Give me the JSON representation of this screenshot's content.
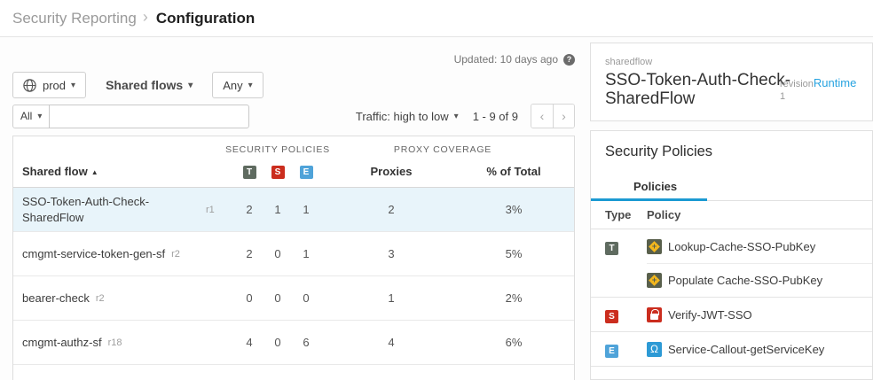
{
  "breadcrumb": {
    "parent": "Security Reporting",
    "separator": "›",
    "current": "Configuration"
  },
  "toolbar": {
    "updated": "Updated: 10 days ago",
    "env_label": "prod",
    "scope_label": "Shared flows",
    "any_label": "Any",
    "all_label": "All",
    "search_value": "",
    "traffic_sort": "Traffic: high to low",
    "pagination": "1 - 9 of 9",
    "prev": "‹",
    "next": "›"
  },
  "table": {
    "group_headers": {
      "security": "SECURITY POLICIES",
      "coverage": "PROXY COVERAGE"
    },
    "columns": {
      "shared_flow": "Shared flow",
      "badges": [
        "T",
        "S",
        "E"
      ],
      "proxies": "Proxies",
      "pct": "% of Total"
    },
    "rows": [
      {
        "name": "SSO-Token-Auth-Check-SharedFlow",
        "revision": "r1",
        "t": "2",
        "s": "1",
        "e": "1",
        "proxies": "2",
        "pct": "3%",
        "selected": true
      },
      {
        "name": "cmgmt-service-token-gen-sf",
        "revision": "r2",
        "t": "2",
        "s": "0",
        "e": "1",
        "proxies": "3",
        "pct": "5%",
        "selected": false
      },
      {
        "name": "bearer-check",
        "revision": "r2",
        "t": "0",
        "s": "0",
        "e": "0",
        "proxies": "1",
        "pct": "2%",
        "selected": false
      },
      {
        "name": "cmgmt-authz-sf",
        "revision": "r18",
        "t": "4",
        "s": "0",
        "e": "6",
        "proxies": "4",
        "pct": "6%",
        "selected": false
      }
    ]
  },
  "detail": {
    "type_label": "sharedflow",
    "title": "SSO-Token-Auth-Check-SharedFlow",
    "revision_label": "revision",
    "revision_value": "1",
    "runtime_link": "Runtime",
    "section_title": "Security Policies",
    "tab": "Policies",
    "policy_columns": {
      "type": "Type",
      "policy": "Policy"
    },
    "policy_groups": [
      {
        "type": "T",
        "policies": [
          {
            "icon": "cache",
            "name": "Lookup-Cache-SSO-PubKey"
          },
          {
            "icon": "cache",
            "name": "Populate Cache-SSO-PubKey"
          }
        ]
      },
      {
        "type": "S",
        "policies": [
          {
            "icon": "lock",
            "name": "Verify-JWT-SSO"
          }
        ]
      },
      {
        "type": "E",
        "policies": [
          {
            "icon": "callout",
            "name": "Service-Callout-getServiceKey"
          }
        ]
      }
    ]
  },
  "colors": {
    "accent": "#1b9ad2",
    "link": "#27a3e0",
    "badge_t": "#5f6b60",
    "badge_s": "#cb2d1e",
    "badge_e": "#4fa3d9",
    "selected_row": "#e8f4fa"
  }
}
